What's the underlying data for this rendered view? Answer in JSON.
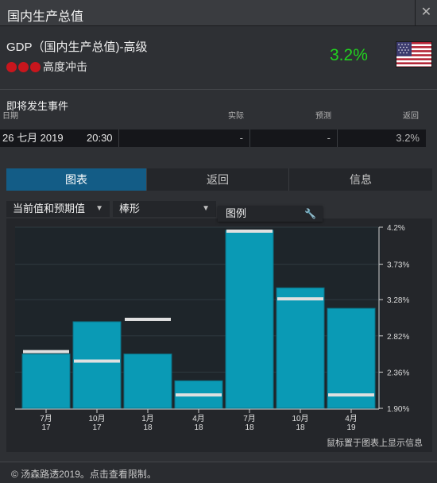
{
  "window": {
    "title": "国内生产总值",
    "close_label": "✕"
  },
  "indicator": {
    "name": "GDP（国内生产总值)-高级",
    "impact_label": "高度冲击",
    "impact_level": 3,
    "value": "3.2%",
    "country_flag_icon": "us-flag-icon"
  },
  "events": {
    "title": "即将发生事件",
    "columns": {
      "date": "日期",
      "actual": "实际",
      "forecast": "预测",
      "previous": "返回"
    },
    "rows": [
      {
        "date": "26 七月 2019",
        "time": "20:30",
        "actual": "-",
        "forecast": "-",
        "previous": "3.2%"
      }
    ]
  },
  "tabs": [
    {
      "label": "图表",
      "active": true
    },
    {
      "label": "返回",
      "active": false
    },
    {
      "label": "信息",
      "active": false
    }
  ],
  "controls": {
    "series_select": "当前值和预期值",
    "type_select": "棒形",
    "legend_label": "图例"
  },
  "chart_data": {
    "type": "bar",
    "categories": [
      [
        "7月",
        "17"
      ],
      [
        "10月",
        "17"
      ],
      [
        "1月",
        "18"
      ],
      [
        "4月",
        "18"
      ],
      [
        "7月",
        "18"
      ],
      [
        "10月",
        "18"
      ],
      [
        "4月",
        "19"
      ]
    ],
    "series": [
      {
        "values": [
          2.59,
          3.0,
          2.59,
          2.25,
          4.16,
          3.43,
          3.17
        ]
      },
      {
        "values": [
          2.62,
          2.5,
          3.03,
          2.07,
          4.15,
          3.29,
          2.07
        ]
      }
    ],
    "ylim": [
      1.9,
      4.2
    ],
    "yticks": [
      "4.2%",
      "3.73%",
      "3.28%",
      "2.82%",
      "2.36%",
      "1.90%"
    ],
    "ytick_values": [
      4.2,
      3.73,
      3.28,
      2.82,
      2.36,
      1.9
    ],
    "bar_color": "#0a9ab5",
    "forecast_color": "#e0e0e0",
    "hint": "鼠标置于图表上显示信息"
  },
  "footer": {
    "copyright": "© 汤森路透2019。点击查看限制。"
  }
}
